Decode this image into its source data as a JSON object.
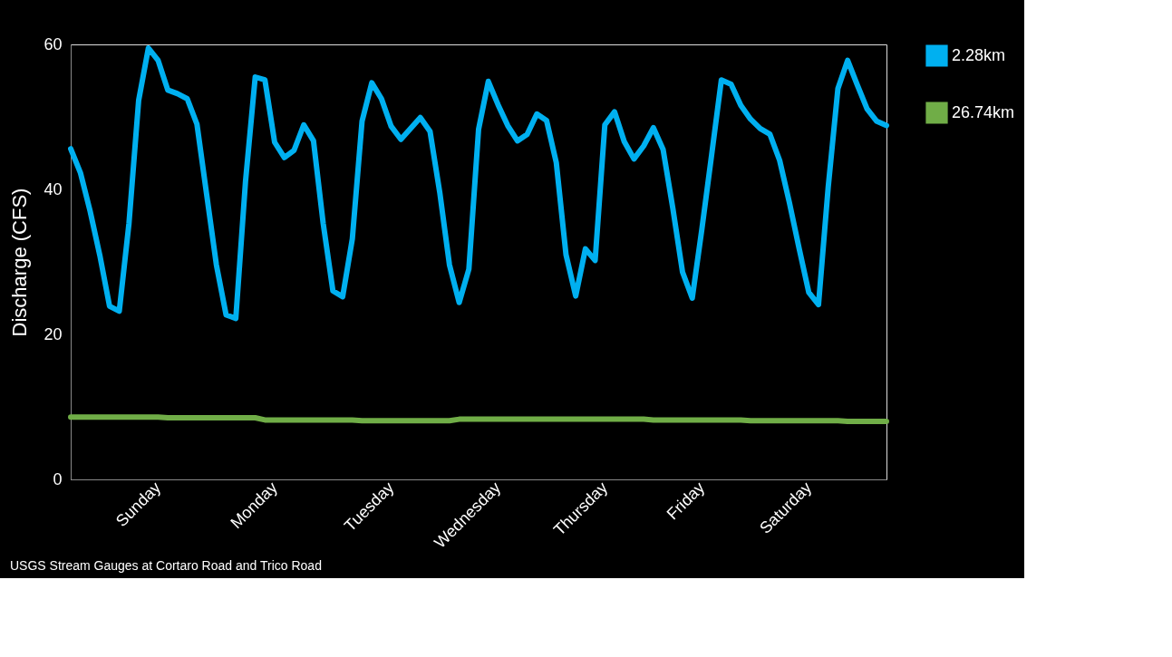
{
  "chart_data": {
    "type": "line",
    "ylabel": "Discharge (CFS)",
    "annotations": [
      "USGS Stream Gauges at Cortaro Road and Trico Road"
    ],
    "categories": [
      null,
      null,
      null,
      null,
      null,
      null,
      null,
      null,
      null,
      "Sunday",
      null,
      null,
      null,
      null,
      null,
      null,
      null,
      null,
      null,
      null,
      null,
      "Monday",
      null,
      null,
      null,
      null,
      null,
      null,
      null,
      null,
      null,
      null,
      null,
      "Tuesday",
      null,
      null,
      null,
      null,
      null,
      null,
      null,
      null,
      null,
      null,
      "Wednesday",
      null,
      null,
      null,
      null,
      null,
      null,
      null,
      null,
      null,
      null,
      "Thursday",
      null,
      null,
      null,
      null,
      null,
      null,
      null,
      null,
      null,
      "Friday",
      null,
      null,
      null,
      null,
      null,
      null,
      null,
      null,
      null,
      null,
      "Saturday",
      null,
      null,
      null,
      null,
      null,
      null,
      null,
      null
    ],
    "ylim": [
      0,
      60
    ],
    "yticks": [
      0,
      20,
      40,
      60
    ],
    "grid": false,
    "legend": "right",
    "series": [
      {
        "name": "2.28km",
        "color": "#00b0f0",
        "values": [
          45.6,
          42.3,
          37.0,
          30.9,
          23.9,
          23.2,
          35.3,
          52.3,
          59.5,
          57.8,
          53.7,
          53.2,
          52.5,
          49.0,
          39.3,
          29.6,
          22.7,
          22.2,
          41.1,
          55.5,
          55.1,
          46.5,
          44.4,
          45.4,
          48.9,
          46.7,
          35.3,
          26.0,
          25.2,
          33.2,
          49.4,
          54.7,
          52.5,
          48.7,
          46.9,
          48.4,
          49.9,
          48.0,
          39.6,
          29.6,
          24.4,
          29.0,
          48.3,
          54.9,
          51.7,
          48.8,
          46.7,
          47.6,
          50.4,
          49.5,
          43.7,
          31.0,
          25.3,
          31.8,
          30.2,
          48.9,
          50.7,
          46.6,
          44.2,
          46.0,
          48.5,
          45.5,
          37.4,
          28.6,
          25.0,
          34.6,
          44.8,
          55.1,
          54.5,
          51.6,
          49.7,
          48.4,
          47.6,
          44.0,
          38.2,
          31.9,
          25.8,
          24.1,
          40.3,
          53.9,
          57.8,
          54.4,
          51.1,
          49.4,
          48.8
        ]
      },
      {
        "name": "26.74km",
        "color": "#70ad47",
        "values": [
          8.6,
          8.6,
          8.6,
          8.6,
          8.6,
          8.6,
          8.6,
          8.6,
          8.6,
          8.6,
          8.5,
          8.5,
          8.5,
          8.5,
          8.5,
          8.5,
          8.5,
          8.5,
          8.5,
          8.5,
          8.2,
          8.2,
          8.2,
          8.2,
          8.2,
          8.2,
          8.2,
          8.2,
          8.2,
          8.2,
          8.1,
          8.1,
          8.1,
          8.1,
          8.1,
          8.1,
          8.1,
          8.1,
          8.1,
          8.1,
          8.3,
          8.3,
          8.3,
          8.3,
          8.3,
          8.3,
          8.3,
          8.3,
          8.3,
          8.3,
          8.3,
          8.3,
          8.3,
          8.3,
          8.3,
          8.3,
          8.3,
          8.3,
          8.3,
          8.3,
          8.2,
          8.2,
          8.2,
          8.2,
          8.2,
          8.2,
          8.2,
          8.2,
          8.2,
          8.2,
          8.1,
          8.1,
          8.1,
          8.1,
          8.1,
          8.1,
          8.1,
          8.1,
          8.1,
          8.1,
          8.0,
          8.0,
          8.0,
          8.0,
          8.0
        ]
      }
    ]
  }
}
